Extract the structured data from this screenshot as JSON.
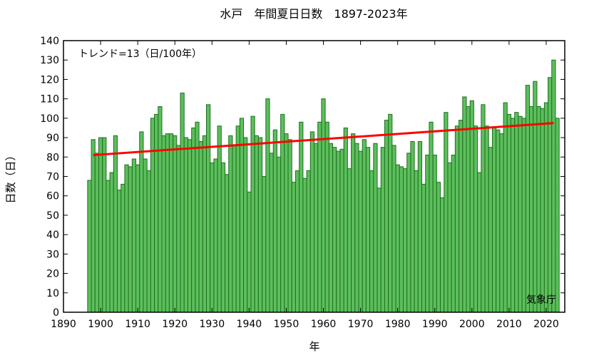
{
  "chart_data": {
    "type": "bar",
    "title": "水戸　年間夏日日数　1897-2023年",
    "xlabel": "年",
    "ylabel": "日数（日）",
    "trend_label": "トレンド=13（日/100年）",
    "source": "気象庁",
    "xlim": [
      1890,
      2025
    ],
    "ylim": [
      0,
      140
    ],
    "x_ticks": [
      1890,
      1900,
      1910,
      1920,
      1930,
      1940,
      1950,
      1960,
      1970,
      1980,
      1990,
      2000,
      2010,
      2020
    ],
    "y_ticks": [
      0,
      10,
      20,
      30,
      40,
      50,
      60,
      70,
      80,
      90,
      100,
      110,
      120,
      130,
      140
    ],
    "grid": false,
    "colors": {
      "bar_fill": "#5cbf5c",
      "bar_stroke": "#1f6f1f",
      "trend": "#ff0000"
    },
    "start_year": 1897,
    "end_year": 2023,
    "values": [
      68,
      89,
      82,
      90,
      90,
      68,
      72,
      91,
      63,
      66,
      76,
      75,
      79,
      76,
      93,
      79,
      73,
      100,
      102,
      106,
      91,
      92,
      92,
      91,
      86,
      113,
      90,
      89,
      95,
      98,
      88,
      91,
      107,
      77,
      79,
      96,
      77,
      71,
      91,
      86,
      96,
      100,
      90,
      62,
      101,
      91,
      90,
      70,
      110,
      82,
      94,
      80,
      102,
      92,
      89,
      67,
      73,
      98,
      69,
      73,
      93,
      87,
      98,
      110,
      98,
      87,
      85,
      83,
      84,
      95,
      74,
      92,
      87,
      83,
      89,
      85,
      73,
      87,
      64,
      85,
      99,
      102,
      86,
      76,
      75,
      74,
      82,
      88,
      73,
      88,
      66,
      81,
      98,
      81,
      67,
      59,
      103,
      77,
      81,
      96,
      99,
      111,
      106,
      109,
      96,
      72,
      107,
      96,
      85,
      95,
      94,
      92,
      108,
      102,
      100,
      103,
      101,
      100,
      117,
      106,
      119,
      106,
      105,
      108,
      121,
      130,
      100
    ],
    "trend": {
      "x": [
        1898,
        2022
      ],
      "y": [
        81,
        97.5
      ]
    }
  }
}
